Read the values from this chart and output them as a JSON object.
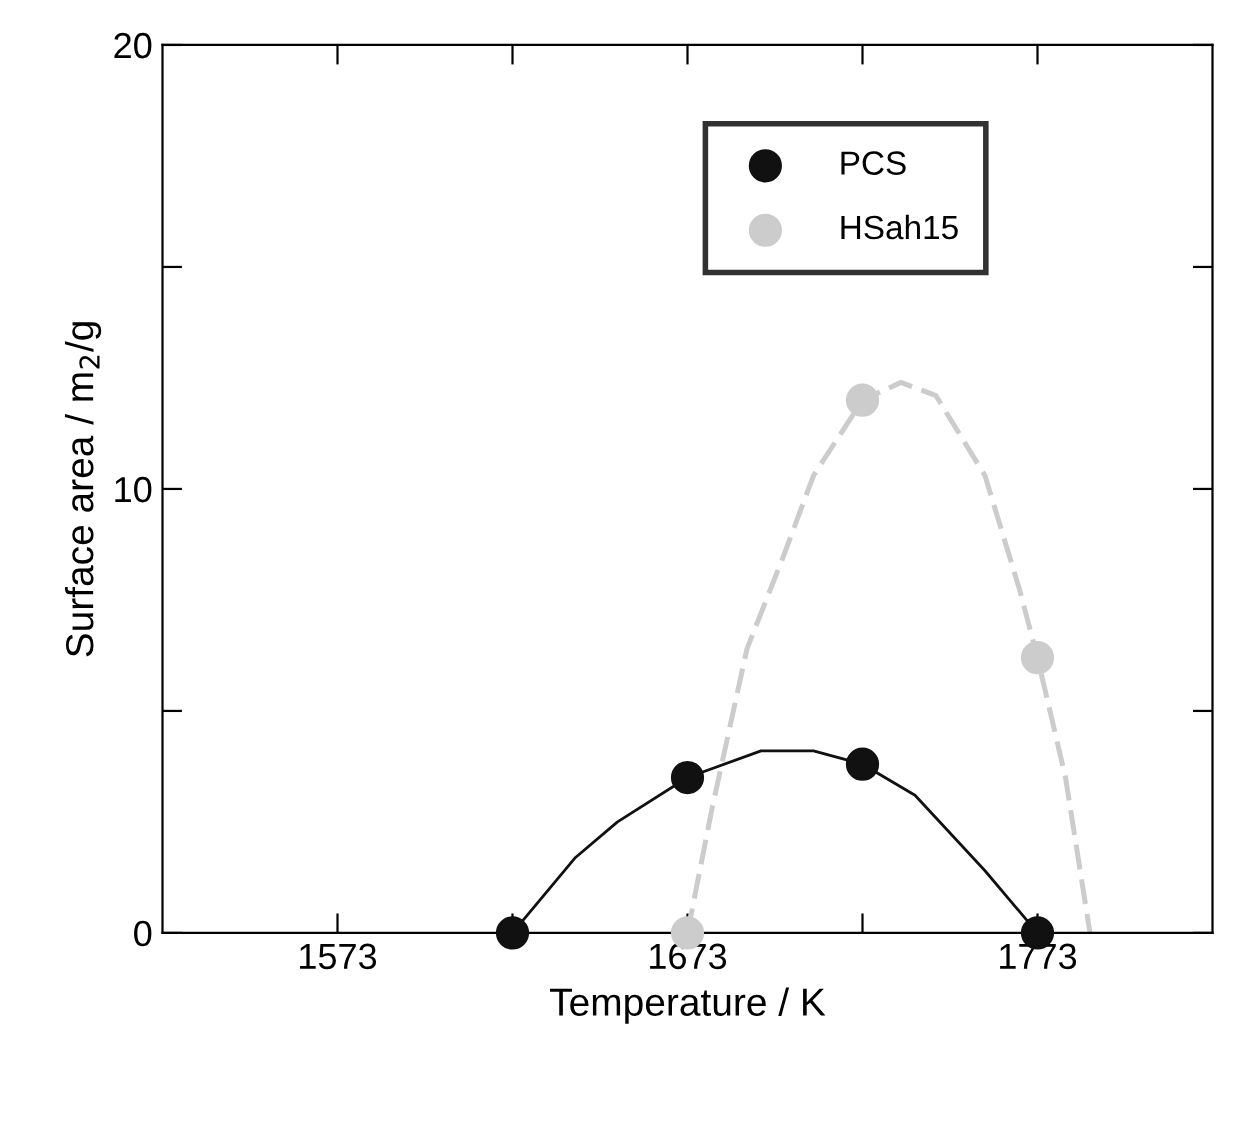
{
  "chart_data": {
    "type": "scatter",
    "xlabel": "Temperature / K",
    "ylabel": "Surface area / m$_{2}$/g",
    "xlim": [
      1523,
      1823
    ],
    "xticks": [
      1573,
      {
        "value": 1623,
        "label": null
      },
      1673,
      {
        "value": 1723,
        "label": null
      },
      1773
    ],
    "ylim": [
      0,
      20
    ],
    "yticks": [
      0,
      {
        "value": 5,
        "label": null
      },
      10,
      {
        "value": 15,
        "label": null
      },
      20
    ],
    "grid": false,
    "legend": "top right",
    "marker": "circle",
    "series": [
      {
        "type": "line",
        "color": "#111111",
        "line_style": "solid",
        "marker": "none",
        "x": [
          1623,
          1641,
          1653,
          1673,
          1694,
          1709,
          1723,
          1738,
          1758,
          1773
        ],
        "values": [
          0,
          1.7,
          2.5,
          3.5,
          4.1,
          4.1,
          3.8,
          3.1,
          1.4,
          0
        ]
      },
      {
        "type": "line",
        "color": "#cccccc",
        "line_style": "dashed",
        "marker": "none",
        "x": [
          1673,
          1680,
          1690,
          1700,
          1709,
          1723,
          1734,
          1744,
          1758,
          1768,
          1773,
          1781,
          1788
        ],
        "values": [
          0,
          2.8,
          6.4,
          8.4,
          10.3,
          12.0,
          12.4,
          12.1,
          10.3,
          7.7,
          6.2,
          3.5,
          0
        ]
      },
      {
        "name": "PCS",
        "color": "#111111",
        "x": [
          1623,
          1673,
          1723,
          1773
        ],
        "values": [
          0,
          3.5,
          3.8,
          0
        ]
      },
      {
        "name": "HSah15",
        "color": "#cccccc",
        "x": [
          1673,
          1723,
          1773
        ],
        "values": [
          0,
          12.0,
          6.2
        ]
      }
    ]
  }
}
